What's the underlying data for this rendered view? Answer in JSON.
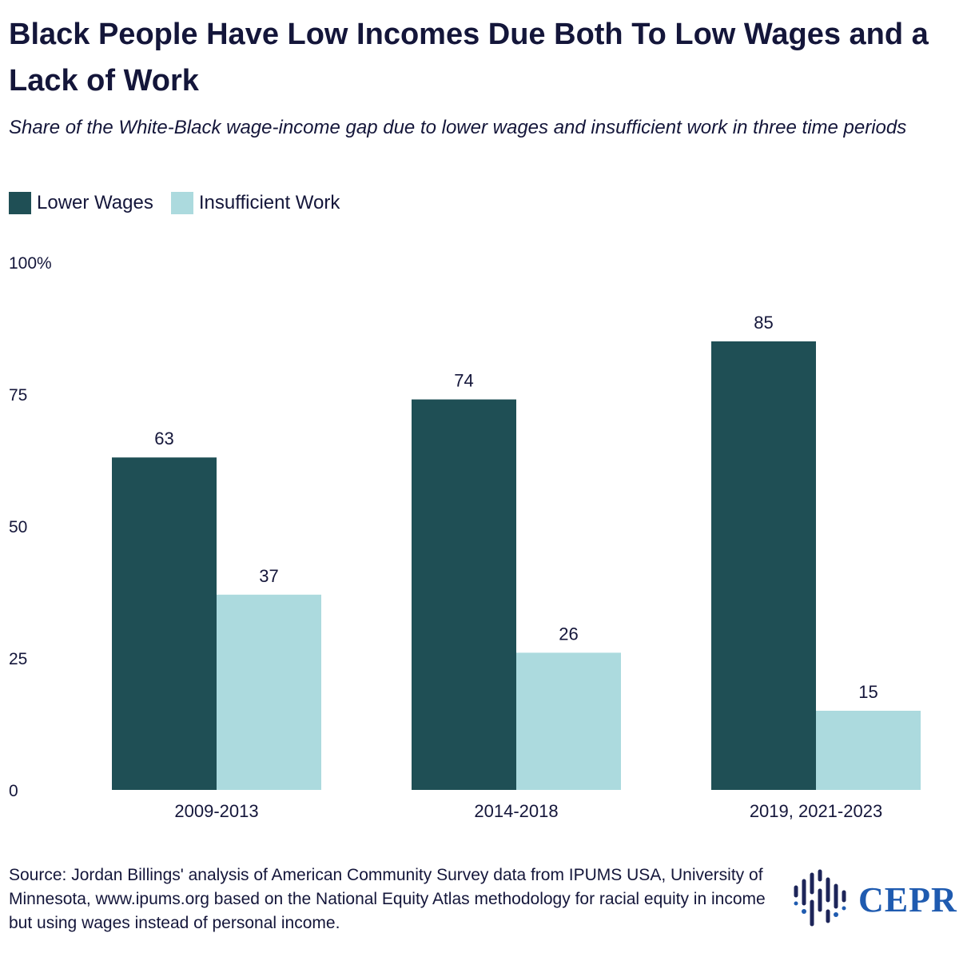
{
  "title": "Black People Have Low Incomes Due Both To Low Wages and a Lack of Work",
  "subtitle": "Share of the White-Black wage-income gap due to lower wages and insufficient work in three time periods",
  "legend": [
    {
      "label": "Lower Wages",
      "color": "#1f4f55"
    },
    {
      "label": "Insufficient Work",
      "color": "#acdade"
    }
  ],
  "source": "Source: Jordan Billings' analysis of American Community Survey data from IPUMS USA, University of Minnesota, www.ipums.org based on the National Equity Atlas methodology for racial equity in income but using wages instead of personal income.",
  "logo": {
    "text": "CEPR",
    "color": "#1f5bb0"
  },
  "chart_data": {
    "type": "bar",
    "title": "Black People Have Low Incomes Due Both To Low Wages and a Lack of Work",
    "xlabel": "",
    "ylabel": "",
    "ylim": [
      0,
      100
    ],
    "y_ticks": [
      "0",
      "25",
      "50",
      "75",
      "100%"
    ],
    "y_tick_values": [
      0,
      25,
      50,
      75,
      100
    ],
    "grid": false,
    "legend_position": "top-left",
    "categories": [
      "2009-2013",
      "2014-2018",
      "2019, 2021-2023"
    ],
    "series": [
      {
        "name": "Lower Wages",
        "color": "#1f4f55",
        "values": [
          63,
          74,
          85
        ]
      },
      {
        "name": "Insufficient Work",
        "color": "#acdade",
        "values": [
          37,
          26,
          15
        ]
      }
    ]
  }
}
